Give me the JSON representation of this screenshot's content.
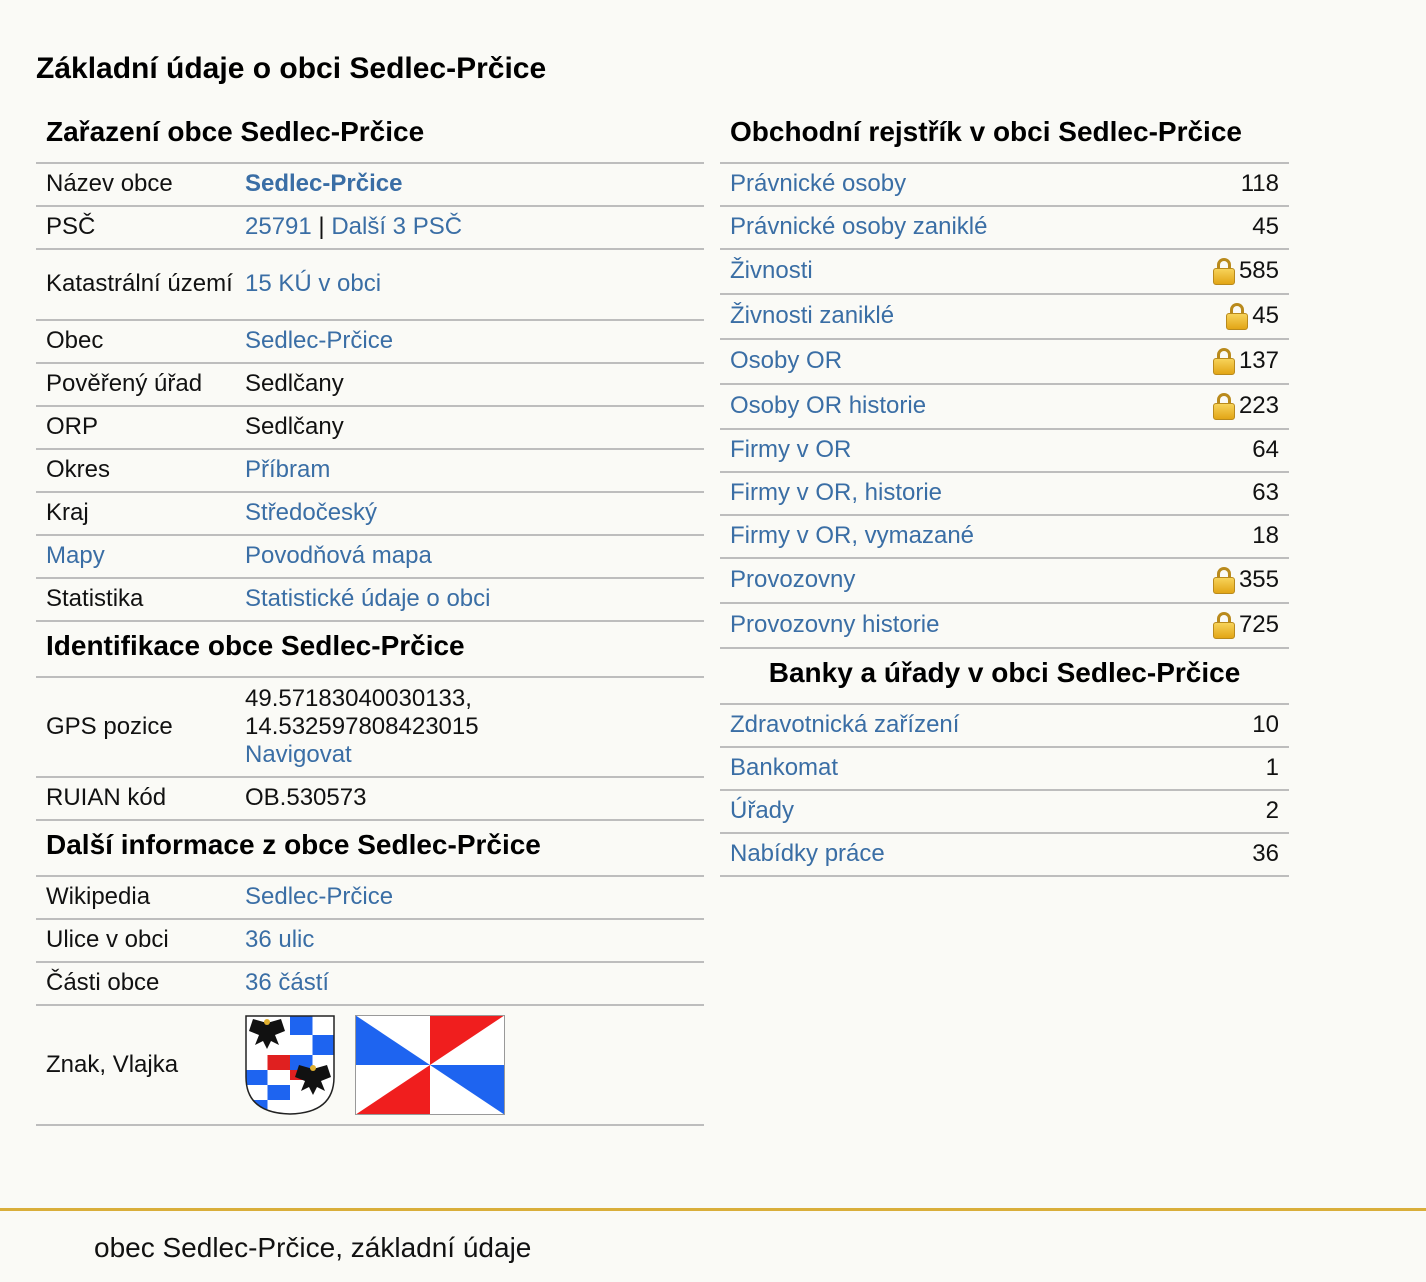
{
  "page_title": "Základní údaje o obci Sedlec-Prčice",
  "zarazeni": {
    "heading": "Zařazení obce Sedlec-Prčice",
    "nazev_label": "Název obce",
    "nazev_value": "Sedlec-Prčice",
    "psc_label": "PSČ",
    "psc_code": "25791",
    "psc_sep": "|",
    "psc_more": "Další 3 PSČ",
    "ku_label": "Katastrální území",
    "ku_value": "15 KÚ v obci",
    "obec_label": "Obec",
    "obec_value": "Sedlec-Prčice",
    "poverany_label": "Pověřený úřad",
    "poverany_value": "Sedlčany",
    "orp_label": "ORP",
    "orp_value": "Sedlčany",
    "okres_label": "Okres",
    "okres_value": "Příbram",
    "kraj_label": "Kraj",
    "kraj_value": "Středočeský",
    "mapy_label": "Mapy",
    "mapy_value": "Povodňová mapa",
    "statistika_label": "Statistika",
    "statistika_value": "Statistické údaje o obci"
  },
  "identifikace": {
    "heading": "Identifikace obce Sedlec-Prčice",
    "gps_label": "GPS pozice",
    "gps_lat": "49.57183040030133,",
    "gps_lon": "14.532597808423015",
    "gps_nav": "Navigovat",
    "ruian_label": "RUIAN kód",
    "ruian_value": "OB.530573"
  },
  "dalsi": {
    "heading": "Další informace z obce Sedlec-Prčice",
    "wiki_label": "Wikipedia",
    "wiki_value": "Sedlec-Prčice",
    "ulice_label": "Ulice v obci",
    "ulice_value": "36 ulic",
    "casti_label": "Části obce",
    "casti_value": "36 částí",
    "znak_label": "Znak, Vlajka"
  },
  "obchodni": {
    "heading": "Obchodní rejstřík v obci Sedlec-Prčice",
    "rows": [
      {
        "label": "Právnické osoby",
        "value": "118",
        "locked": false
      },
      {
        "label": "Právnické osoby zaniklé",
        "value": "45",
        "locked": false
      },
      {
        "label": "Živnosti",
        "value": "585",
        "locked": true
      },
      {
        "label": "Živnosti zaniklé",
        "value": "45",
        "locked": true
      },
      {
        "label": "Osoby OR",
        "value": "137",
        "locked": true
      },
      {
        "label": "Osoby OR historie",
        "value": "223",
        "locked": true
      },
      {
        "label": "Firmy v OR",
        "value": "64",
        "locked": false
      },
      {
        "label": "Firmy v OR, historie",
        "value": "63",
        "locked": false
      },
      {
        "label": "Firmy v OR, vymazané",
        "value": "18",
        "locked": false
      },
      {
        "label": "Provozovny",
        "value": "355",
        "locked": true
      },
      {
        "label": "Provozovny historie",
        "value": "725",
        "locked": true
      }
    ]
  },
  "banky": {
    "heading": "Banky a úřady v obci Sedlec-Prčice",
    "rows": [
      {
        "label": "Zdravotnická zařízení",
        "value": "10"
      },
      {
        "label": "Bankomat",
        "value": "1"
      },
      {
        "label": "Úřady",
        "value": "2"
      },
      {
        "label": "Nabídky práce",
        "value": "36"
      }
    ]
  },
  "footer": "obec Sedlec-Prčice, základní údaje",
  "colors": {
    "link": "#3a6ea5",
    "divider": "#bdbdbd",
    "footer_line": "#d9ae3a",
    "flag_blue": "#1e64f0",
    "flag_red": "#f01e1e",
    "flag_white": "#ffffff"
  }
}
